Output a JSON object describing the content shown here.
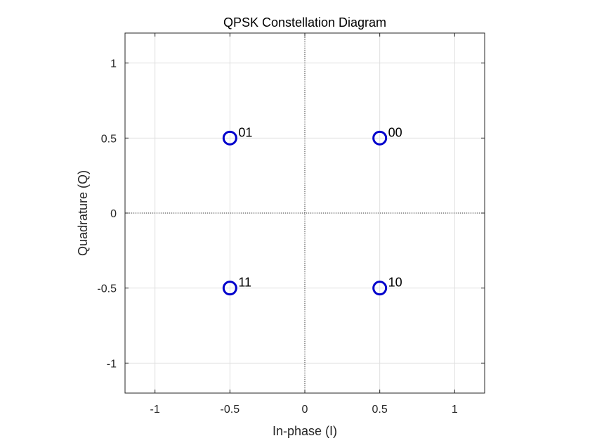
{
  "chart_data": {
    "type": "scatter",
    "title": "QPSK Constellation Diagram",
    "xlabel": "In-phase (I)",
    "ylabel": "Quadrature (Q)",
    "xlim": [
      -1.2,
      1.2
    ],
    "ylim": [
      -1.2,
      1.2
    ],
    "xticks": [
      -1,
      -0.5,
      0,
      0.5,
      1
    ],
    "yticks": [
      -1,
      -0.5,
      0,
      0.5,
      1
    ],
    "xtick_labels": [
      "-1",
      "-0.5",
      "0",
      "0.5",
      "1"
    ],
    "ytick_labels": [
      "-1",
      "-0.5",
      "0",
      "0.5",
      "1"
    ],
    "grid": true,
    "zero_lines": "dotted",
    "marker": "circle",
    "marker_color": "#0000cc",
    "points": [
      {
        "x": 0.5,
        "y": 0.5,
        "label": "00"
      },
      {
        "x": -0.5,
        "y": 0.5,
        "label": "01"
      },
      {
        "x": 0.5,
        "y": -0.5,
        "label": "10"
      },
      {
        "x": -0.5,
        "y": -0.5,
        "label": "11"
      }
    ]
  }
}
